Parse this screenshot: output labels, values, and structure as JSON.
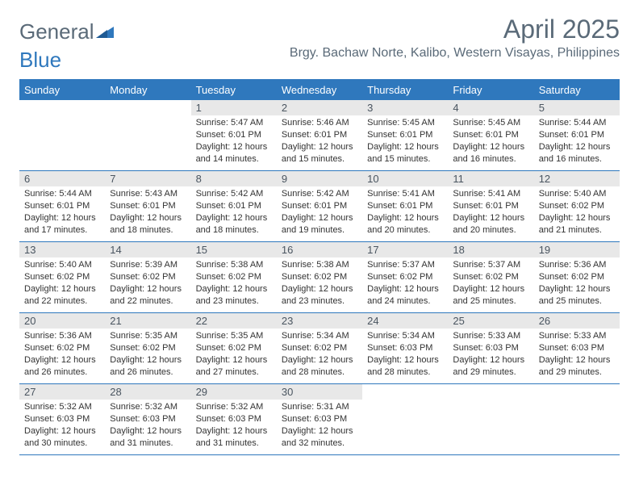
{
  "logo": {
    "word1": "General",
    "word2": "Blue"
  },
  "title": "April 2025",
  "location": "Brgy. Bachaw Norte, Kalibo, Western Visayas, Philippines",
  "columns": [
    "Sunday",
    "Monday",
    "Tuesday",
    "Wednesday",
    "Thursday",
    "Friday",
    "Saturday"
  ],
  "colors": {
    "header_bg": "#2f78bd",
    "header_text": "#ffffff",
    "daynum_bg": "#e8e8e8",
    "border": "#2f78bd",
    "title_color": "#5a6a78"
  },
  "typography": {
    "title_fontsize": 32,
    "location_fontsize": 16,
    "col_header_fontsize": 13,
    "daynum_fontsize": 13,
    "body_fontsize": 11
  },
  "weeks": [
    [
      null,
      null,
      {
        "n": "1",
        "sr": "Sunrise: 5:47 AM",
        "ss": "Sunset: 6:01 PM",
        "d1": "Daylight: 12 hours",
        "d2": "and 14 minutes."
      },
      {
        "n": "2",
        "sr": "Sunrise: 5:46 AM",
        "ss": "Sunset: 6:01 PM",
        "d1": "Daylight: 12 hours",
        "d2": "and 15 minutes."
      },
      {
        "n": "3",
        "sr": "Sunrise: 5:45 AM",
        "ss": "Sunset: 6:01 PM",
        "d1": "Daylight: 12 hours",
        "d2": "and 15 minutes."
      },
      {
        "n": "4",
        "sr": "Sunrise: 5:45 AM",
        "ss": "Sunset: 6:01 PM",
        "d1": "Daylight: 12 hours",
        "d2": "and 16 minutes."
      },
      {
        "n": "5",
        "sr": "Sunrise: 5:44 AM",
        "ss": "Sunset: 6:01 PM",
        "d1": "Daylight: 12 hours",
        "d2": "and 16 minutes."
      }
    ],
    [
      {
        "n": "6",
        "sr": "Sunrise: 5:44 AM",
        "ss": "Sunset: 6:01 PM",
        "d1": "Daylight: 12 hours",
        "d2": "and 17 minutes."
      },
      {
        "n": "7",
        "sr": "Sunrise: 5:43 AM",
        "ss": "Sunset: 6:01 PM",
        "d1": "Daylight: 12 hours",
        "d2": "and 18 minutes."
      },
      {
        "n": "8",
        "sr": "Sunrise: 5:42 AM",
        "ss": "Sunset: 6:01 PM",
        "d1": "Daylight: 12 hours",
        "d2": "and 18 minutes."
      },
      {
        "n": "9",
        "sr": "Sunrise: 5:42 AM",
        "ss": "Sunset: 6:01 PM",
        "d1": "Daylight: 12 hours",
        "d2": "and 19 minutes."
      },
      {
        "n": "10",
        "sr": "Sunrise: 5:41 AM",
        "ss": "Sunset: 6:01 PM",
        "d1": "Daylight: 12 hours",
        "d2": "and 20 minutes."
      },
      {
        "n": "11",
        "sr": "Sunrise: 5:41 AM",
        "ss": "Sunset: 6:01 PM",
        "d1": "Daylight: 12 hours",
        "d2": "and 20 minutes."
      },
      {
        "n": "12",
        "sr": "Sunrise: 5:40 AM",
        "ss": "Sunset: 6:02 PM",
        "d1": "Daylight: 12 hours",
        "d2": "and 21 minutes."
      }
    ],
    [
      {
        "n": "13",
        "sr": "Sunrise: 5:40 AM",
        "ss": "Sunset: 6:02 PM",
        "d1": "Daylight: 12 hours",
        "d2": "and 22 minutes."
      },
      {
        "n": "14",
        "sr": "Sunrise: 5:39 AM",
        "ss": "Sunset: 6:02 PM",
        "d1": "Daylight: 12 hours",
        "d2": "and 22 minutes."
      },
      {
        "n": "15",
        "sr": "Sunrise: 5:38 AM",
        "ss": "Sunset: 6:02 PM",
        "d1": "Daylight: 12 hours",
        "d2": "and 23 minutes."
      },
      {
        "n": "16",
        "sr": "Sunrise: 5:38 AM",
        "ss": "Sunset: 6:02 PM",
        "d1": "Daylight: 12 hours",
        "d2": "and 23 minutes."
      },
      {
        "n": "17",
        "sr": "Sunrise: 5:37 AM",
        "ss": "Sunset: 6:02 PM",
        "d1": "Daylight: 12 hours",
        "d2": "and 24 minutes."
      },
      {
        "n": "18",
        "sr": "Sunrise: 5:37 AM",
        "ss": "Sunset: 6:02 PM",
        "d1": "Daylight: 12 hours",
        "d2": "and 25 minutes."
      },
      {
        "n": "19",
        "sr": "Sunrise: 5:36 AM",
        "ss": "Sunset: 6:02 PM",
        "d1": "Daylight: 12 hours",
        "d2": "and 25 minutes."
      }
    ],
    [
      {
        "n": "20",
        "sr": "Sunrise: 5:36 AM",
        "ss": "Sunset: 6:02 PM",
        "d1": "Daylight: 12 hours",
        "d2": "and 26 minutes."
      },
      {
        "n": "21",
        "sr": "Sunrise: 5:35 AM",
        "ss": "Sunset: 6:02 PM",
        "d1": "Daylight: 12 hours",
        "d2": "and 26 minutes."
      },
      {
        "n": "22",
        "sr": "Sunrise: 5:35 AM",
        "ss": "Sunset: 6:02 PM",
        "d1": "Daylight: 12 hours",
        "d2": "and 27 minutes."
      },
      {
        "n": "23",
        "sr": "Sunrise: 5:34 AM",
        "ss": "Sunset: 6:02 PM",
        "d1": "Daylight: 12 hours",
        "d2": "and 28 minutes."
      },
      {
        "n": "24",
        "sr": "Sunrise: 5:34 AM",
        "ss": "Sunset: 6:03 PM",
        "d1": "Daylight: 12 hours",
        "d2": "and 28 minutes."
      },
      {
        "n": "25",
        "sr": "Sunrise: 5:33 AM",
        "ss": "Sunset: 6:03 PM",
        "d1": "Daylight: 12 hours",
        "d2": "and 29 minutes."
      },
      {
        "n": "26",
        "sr": "Sunrise: 5:33 AM",
        "ss": "Sunset: 6:03 PM",
        "d1": "Daylight: 12 hours",
        "d2": "and 29 minutes."
      }
    ],
    [
      {
        "n": "27",
        "sr": "Sunrise: 5:32 AM",
        "ss": "Sunset: 6:03 PM",
        "d1": "Daylight: 12 hours",
        "d2": "and 30 minutes."
      },
      {
        "n": "28",
        "sr": "Sunrise: 5:32 AM",
        "ss": "Sunset: 6:03 PM",
        "d1": "Daylight: 12 hours",
        "d2": "and 31 minutes."
      },
      {
        "n": "29",
        "sr": "Sunrise: 5:32 AM",
        "ss": "Sunset: 6:03 PM",
        "d1": "Daylight: 12 hours",
        "d2": "and 31 minutes."
      },
      {
        "n": "30",
        "sr": "Sunrise: 5:31 AM",
        "ss": "Sunset: 6:03 PM",
        "d1": "Daylight: 12 hours",
        "d2": "and 32 minutes."
      },
      null,
      null,
      null
    ]
  ]
}
